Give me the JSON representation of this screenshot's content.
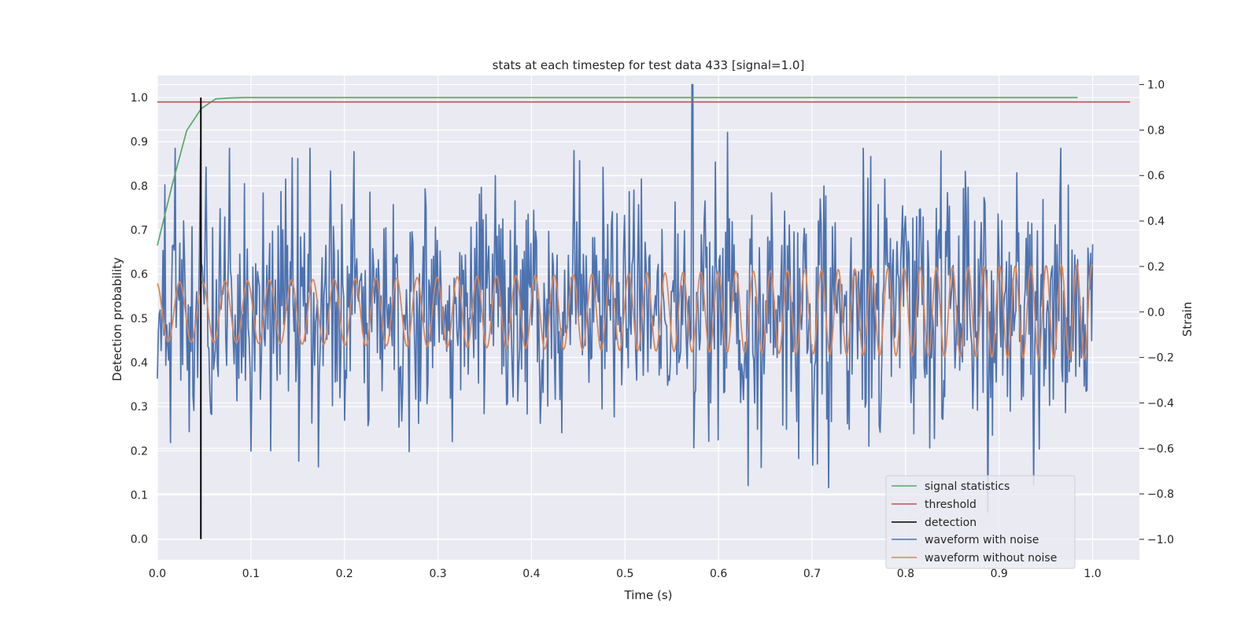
{
  "chart_data": {
    "type": "line",
    "title": "stats at each timestep for test data 433 [signal=1.0]",
    "xlabel": "Time (s)",
    "ylabel": "Detection probability",
    "ylabel_right": "Strain",
    "xlim": [
      0.0,
      1.05
    ],
    "ylim": [
      -0.047,
      1.05
    ],
    "ylim_right": [
      -1.09,
      1.04
    ],
    "x_ticks": [
      "0.0",
      "0.1",
      "0.2",
      "0.3",
      "0.4",
      "0.5",
      "0.6",
      "0.7",
      "0.8",
      "0.9",
      "1.0"
    ],
    "y_ticks": [
      "0.0",
      "0.1",
      "0.2",
      "0.3",
      "0.4",
      "0.5",
      "0.6",
      "0.7",
      "0.8",
      "0.9",
      "1.0"
    ],
    "y_right_ticks": [
      "−1.0",
      "−0.8",
      "−0.6",
      "−0.4",
      "−0.2",
      "0.0",
      "0.2",
      "0.4",
      "0.6",
      "0.8",
      "1.0"
    ],
    "grid": true,
    "legend_position": "lower-right",
    "series": [
      {
        "name": "signal statistics",
        "color": "#55a868",
        "axis": "left",
        "x": [
          0.0,
          0.0156,
          0.0313,
          0.0469,
          0.0625,
          0.0781,
          0.0938,
          0.5,
          0.984
        ],
        "y": [
          0.665,
          0.8,
          0.925,
          0.975,
          0.997,
          0.999,
          1.0,
          1.0,
          1.0
        ]
      },
      {
        "name": "threshold",
        "color": "#c44e52",
        "axis": "left",
        "x": [
          0.0,
          1.04
        ],
        "y": [
          0.99,
          0.99
        ]
      },
      {
        "name": "detection",
        "color": "#000000",
        "axis": "left",
        "x": [
          0.0465,
          0.0465
        ],
        "y": [
          0.0,
          1.0
        ]
      },
      {
        "name": "waveform with noise",
        "color": "#4c72b0",
        "axis": "right",
        "noise_std": 0.28,
        "noise_seed": 433,
        "peaks": [
          [
            0.572,
            1.0
          ],
          [
            0.888,
            -0.88
          ],
          [
            0.61,
            0.79
          ],
          [
            0.185,
            0.62
          ],
          [
            0.755,
            0.72
          ]
        ],
        "x_range": [
          0.0,
          1.0
        ],
        "n_points": 1000
      },
      {
        "name": "waveform without noise",
        "color": "#dd8452",
        "axis": "right",
        "amplitude_start": 0.13,
        "amplitude_end": 0.21,
        "frequency_start": 40,
        "frequency_end": 62,
        "x_range": [
          0.0,
          1.0
        ],
        "n_points": 1000
      }
    ]
  }
}
